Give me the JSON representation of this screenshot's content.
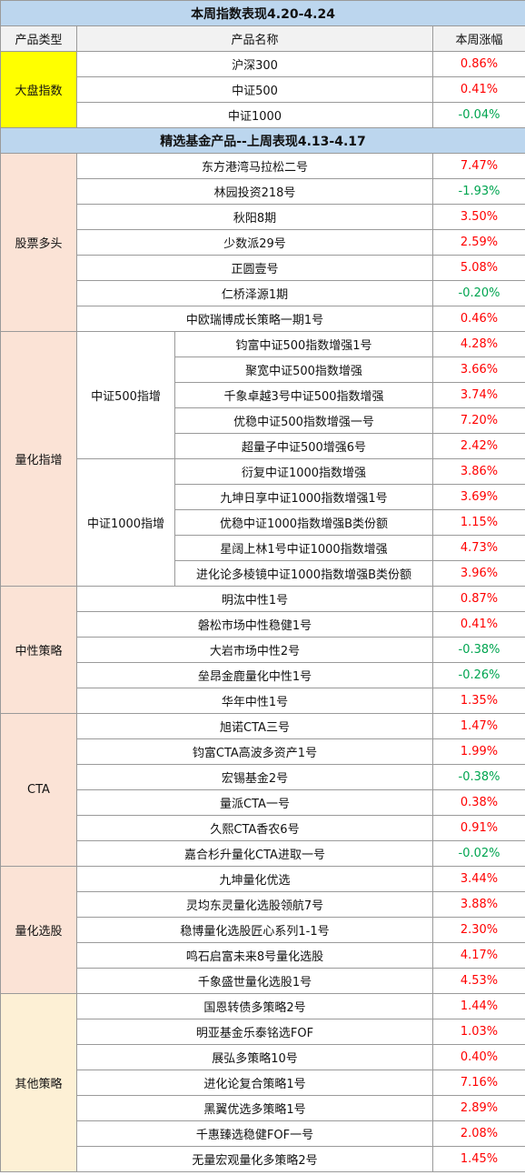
{
  "title": "本周指数表现4.20-4.24",
  "headers": {
    "type": "产品类型",
    "name": "产品名称",
    "change": "本周涨幅"
  },
  "index": {
    "category": "大盘指数",
    "rows": [
      {
        "name": "沪深300",
        "change": "0.86%"
      },
      {
        "name": "中证500",
        "change": "0.41%"
      },
      {
        "name": "中证1000",
        "change": "-0.04%"
      }
    ]
  },
  "section2_title": "精选基金产品--上周表现4.13-4.17",
  "stocks": {
    "category": "股票多头",
    "rows": [
      {
        "name": "东方港湾马拉松二号",
        "change": "7.47%"
      },
      {
        "name": "林园投资218号",
        "change": "-1.93%"
      },
      {
        "name": "秋阳8期",
        "change": "3.50%"
      },
      {
        "name": "少数派29号",
        "change": "2.59%"
      },
      {
        "name": "正圆壹号",
        "change": "5.08%"
      },
      {
        "name": "仁桥泽源1期",
        "change": "-0.20%"
      },
      {
        "name": "中欧瑞博成长策略一期1号",
        "change": "0.46%"
      }
    ]
  },
  "quant": {
    "category": "量化指增",
    "sub500": {
      "label": "中证500指增",
      "rows": [
        {
          "name": "钧富中证500指数增强1号",
          "change": "4.28%"
        },
        {
          "name": "聚宽中证500指数增强",
          "change": "3.66%"
        },
        {
          "name": "千象卓越3号中证500指数增强",
          "change": "3.74%"
        },
        {
          "name": "优稳中证500指数增强一号",
          "change": "7.20%"
        },
        {
          "name": "超量子中证500增强6号",
          "change": "2.42%"
        }
      ]
    },
    "sub1000": {
      "label": "中证1000指增",
      "rows": [
        {
          "name": "衍复中证1000指数增强",
          "change": "3.86%"
        },
        {
          "name": "九坤日享中证1000指数增强1号",
          "change": "3.69%"
        },
        {
          "name": "优稳中证1000指数增强B类份额",
          "change": "1.15%"
        },
        {
          "name": "星阔上林1号中证1000指数增强",
          "change": "4.73%"
        },
        {
          "name": "进化论多棱镜中证1000指数增强B类份额",
          "change": "3.96%"
        }
      ]
    }
  },
  "neutral": {
    "category": "中性策略",
    "rows": [
      {
        "name": "明汯中性1号",
        "change": "0.87%"
      },
      {
        "name": "磐松市场中性稳健1号",
        "change": "0.41%"
      },
      {
        "name": "大岩市场中性2号",
        "change": "-0.38%"
      },
      {
        "name": "垒昂金鹿量化中性1号",
        "change": "-0.26%"
      },
      {
        "name": "华年中性1号",
        "change": "1.35%"
      }
    ]
  },
  "cta": {
    "category": "CTA",
    "rows": [
      {
        "name": "旭诺CTA三号",
        "change": "1.47%"
      },
      {
        "name": "钧富CTA高波多资产1号",
        "change": "1.99%"
      },
      {
        "name": "宏锡基金2号",
        "change": "-0.38%"
      },
      {
        "name": "量派CTA一号",
        "change": "0.38%"
      },
      {
        "name": "久熙CTA香农6号",
        "change": "0.91%"
      },
      {
        "name": "嘉合杉升量化CTA进取一号",
        "change": "-0.02%"
      }
    ]
  },
  "quantpick": {
    "category": "量化选股",
    "rows": [
      {
        "name": "九坤量化优选",
        "change": "3.44%"
      },
      {
        "name": "灵均东灵量化选股领航7号",
        "change": "3.88%"
      },
      {
        "name": "稳博量化选股匠心系列1-1号",
        "change": "2.30%"
      },
      {
        "name": "鸣石启富未来8号量化选股",
        "change": "4.17%"
      },
      {
        "name": "千象盛世量化选股1号",
        "change": "4.53%"
      }
    ]
  },
  "other": {
    "category": "其他策略",
    "rows": [
      {
        "name": "国恩转债多策略2号",
        "change": "1.44%"
      },
      {
        "name": "明亚基金乐泰铭选FOF",
        "change": "1.03%"
      },
      {
        "name": "展弘多策略10号",
        "change": "0.40%"
      },
      {
        "name": "进化论复合策略1号",
        "change": "7.16%"
      },
      {
        "name": "黑翼优选多策略1号",
        "change": "2.89%"
      },
      {
        "name": "千惠臻选稳健FOF一号",
        "change": "2.08%"
      },
      {
        "name": "无量宏观量化多策略2号",
        "change": "1.45%"
      }
    ]
  },
  "colors": {
    "header_bg": "#bcd6ee",
    "index_category_bg": "#ffff00",
    "category_bg": "#fbe3d6",
    "other_category_bg": "#fdf0d5",
    "positive": "#ff0000",
    "negative": "#00a550"
  }
}
